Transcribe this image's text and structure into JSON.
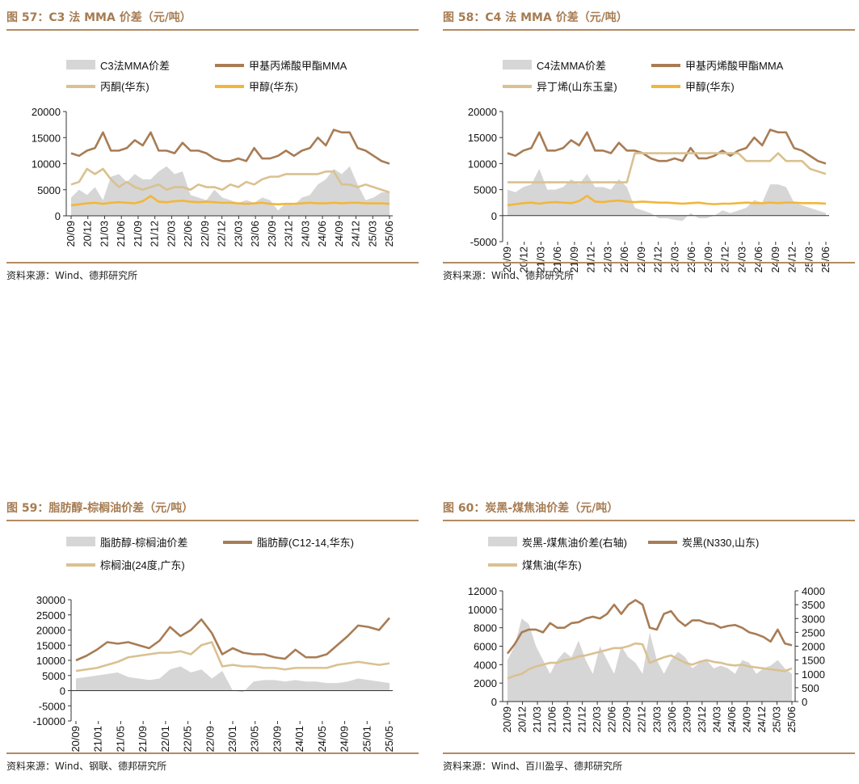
{
  "charts": [
    {
      "fig_no": "图 57：",
      "title": "C3 法 MMA 价差（元/吨）",
      "source": "资料来源：Wind、德邦研究所",
      "colors": {
        "spread": "#d6d6d6",
        "mma": "#a87c55",
        "b": "#d9c191",
        "methanol": "#f2b63b"
      },
      "chart_data": {
        "type": "line",
        "title": "C3 法 MMA 价差（元/吨）",
        "legend": [
          "C3法MMA价差",
          "甲基丙烯酸甲酯MMA",
          "丙酮(华东)",
          "甲醇(华东)"
        ],
        "ylim": [
          0,
          20000
        ],
        "yticks": [
          "20000",
          "15000",
          "10000",
          "5000",
          "0"
        ],
        "xticks": [
          "20/09",
          "20/12",
          "21/03",
          "21/06",
          "21/09",
          "21/12",
          "22/03",
          "22/06",
          "22/09",
          "22/12",
          "23/03",
          "23/06",
          "23/09",
          "23/12",
          "24/03",
          "24/06",
          "24/09",
          "24/12",
          "25/03",
          "25/06"
        ],
        "x": [
          0,
          0.5,
          1,
          1.5,
          2,
          2.5,
          3,
          3.5,
          4,
          4.5,
          5,
          5.5,
          6,
          6.5,
          7,
          7.5,
          8,
          8.5,
          9,
          9.5,
          10,
          10.5,
          11,
          11.5,
          12,
          12.5,
          13,
          13.5,
          14,
          14.5,
          15,
          15.5,
          16,
          16.5,
          17,
          17.5,
          18,
          18.5,
          19,
          19.5,
          20
        ],
        "series": [
          {
            "name": "C3法MMA价差",
            "kind": "area",
            "values": [
              3500,
              5000,
              4000,
              5500,
              3000,
              7500,
              8000,
              6500,
              8000,
              7000,
              7000,
              8500,
              9500,
              8000,
              8500,
              4000,
              3500,
              3000,
              5000,
              3500,
              3000,
              2500,
              3000,
              2500,
              3500,
              3000,
              1000,
              2500,
              2000,
              3500,
              4000,
              6000,
              7000,
              9000,
              8000,
              9500,
              6000,
              3000,
              3500,
              4500,
              4500
            ]
          },
          {
            "name": "甲基丙烯酸甲酯MMA",
            "kind": "line",
            "values": [
              12000,
              11500,
              12500,
              13000,
              16000,
              12500,
              12500,
              13000,
              14500,
              13500,
              16000,
              12500,
              12500,
              12000,
              14000,
              12500,
              12500,
              12000,
              11000,
              10500,
              10500,
              11000,
              10500,
              13000,
              11000,
              11000,
              11500,
              12500,
              11500,
              12500,
              13000,
              15000,
              13500,
              16500,
              16000,
              16000,
              13000,
              12500,
              11500,
              10500,
              10000
            ]
          },
          {
            "name": "丙酮(华东)",
            "kind": "line",
            "values": [
              6000,
              6500,
              9000,
              8000,
              9000,
              7000,
              5500,
              6500,
              5500,
              5000,
              5500,
              6000,
              5000,
              5500,
              5500,
              5000,
              6000,
              5500,
              5500,
              5000,
              6000,
              5500,
              6500,
              6000,
              7000,
              7500,
              7500,
              8000,
              8000,
              8000,
              8000,
              8000,
              8500,
              8500,
              6000,
              6000,
              5500,
              6000,
              5500,
              5000,
              4500
            ]
          },
          {
            "name": "甲醇(华东)",
            "kind": "line",
            "values": [
              2000,
              2200,
              2400,
              2500,
              2300,
              2500,
              2600,
              2500,
              2400,
              2800,
              3800,
              2700,
              2600,
              2800,
              2900,
              2700,
              2600,
              2700,
              2600,
              2500,
              2500,
              2400,
              2300,
              2400,
              2500,
              2300,
              2200,
              2300,
              2300,
              2400,
              2500,
              2400,
              2400,
              2500,
              2400,
              2500,
              2500,
              2400,
              2400,
              2400,
              2300
            ]
          }
        ]
      }
    },
    {
      "fig_no": "图 58：",
      "title": "C4 法 MMA 价差（元/吨）",
      "source": "资料来源：Wind、德邦研究所",
      "colors": {
        "spread": "#d6d6d6",
        "mma": "#a87c55",
        "b": "#d9c191",
        "methanol": "#f2b63b"
      },
      "chart_data": {
        "type": "line",
        "title": "C4 法 MMA 价差（元/吨）",
        "legend": [
          "C4法MMA价差",
          "甲基丙烯酸甲酯MMA",
          "异丁烯(山东玉皇)",
          "甲醇(华东)"
        ],
        "ylim": [
          -5000,
          20000
        ],
        "yticks": [
          "20000",
          "15000",
          "10000",
          "5000",
          "0",
          "-5000"
        ],
        "xticks": [
          "20/09",
          "20/12",
          "21/03",
          "21/06",
          "21/09",
          "21/12",
          "22/03",
          "22/06",
          "22/09",
          "22/12",
          "23/03",
          "23/06",
          "23/09",
          "23/12",
          "24/03",
          "24/06",
          "24/09",
          "24/12",
          "25/03",
          "25/06"
        ],
        "x": [
          0,
          0.5,
          1,
          1.5,
          2,
          2.5,
          3,
          3.5,
          4,
          4.5,
          5,
          5.5,
          6,
          6.5,
          7,
          7.5,
          8,
          8.5,
          9,
          9.5,
          10,
          10.5,
          11,
          11.5,
          12,
          12.5,
          13,
          13.5,
          14,
          14.5,
          15,
          15.5,
          16,
          16.5,
          17,
          17.5,
          18,
          18.5,
          19,
          19.5,
          20
        ],
        "series": [
          {
            "name": "C4法MMA价差",
            "kind": "area",
            "values": [
              5000,
              4500,
              5500,
              6000,
              9000,
              5000,
              5000,
              5500,
              7000,
              6000,
              8000,
              5500,
              5500,
              5000,
              7000,
              5500,
              1500,
              1000,
              500,
              -500,
              -500,
              -800,
              -1000,
              500,
              -500,
              -500,
              0,
              1000,
              500,
              1000,
              1500,
              3000,
              2500,
              6000,
              6000,
              5500,
              2500,
              2000,
              1500,
              1000,
              500
            ]
          },
          {
            "name": "甲基丙烯酸甲酯MMA",
            "kind": "line",
            "values": [
              12000,
              11500,
              12500,
              13000,
              16000,
              12500,
              12500,
              13000,
              14500,
              13500,
              16000,
              12500,
              12500,
              12000,
              14000,
              12500,
              12500,
              12000,
              11000,
              10500,
              10500,
              11000,
              10500,
              13000,
              11000,
              11000,
              11500,
              12500,
              11500,
              12500,
              13000,
              15000,
              13500,
              16500,
              16000,
              16000,
              13000,
              12500,
              11500,
              10500,
              10000
            ]
          },
          {
            "name": "异丁烯(山东玉皇)",
            "kind": "line",
            "values": [
              6400,
              6400,
              6400,
              6400,
              6400,
              6400,
              6400,
              6400,
              6400,
              6400,
              6400,
              6400,
              6400,
              6400,
              6400,
              6400,
              12000,
              12000,
              12000,
              12000,
              12000,
              12000,
              12000,
              12000,
              12000,
              12000,
              12000,
              12000,
              12000,
              12000,
              10500,
              10500,
              10500,
              10500,
              12000,
              10500,
              10500,
              10500,
              9000,
              8500,
              8000
            ]
          },
          {
            "name": "甲醇(华东)",
            "kind": "line",
            "values": [
              2000,
              2200,
              2400,
              2500,
              2300,
              2500,
              2600,
              2500,
              2400,
              2800,
              3800,
              2700,
              2600,
              2800,
              2900,
              2700,
              2600,
              2700,
              2600,
              2500,
              2500,
              2400,
              2300,
              2400,
              2500,
              2300,
              2200,
              2300,
              2300,
              2400,
              2500,
              2400,
              2400,
              2500,
              2400,
              2500,
              2500,
              2400,
              2400,
              2400,
              2300
            ]
          }
        ]
      }
    },
    {
      "fig_no": "图 59：",
      "title": "脂肪醇-棕榈油价差（元/吨）",
      "source": "资料来源：Wind、钢联、德邦研究所",
      "colors": {
        "spread": "#d6d6d6",
        "mma": "#a87c55",
        "b": "#d9c191",
        "methanol": "#f2b63b"
      },
      "chart_data": {
        "type": "line",
        "title": "脂肪醇-棕榈油价差（元/吨）",
        "legend": [
          "脂肪醇-棕榈油价差",
          "脂肪醇(C12-14,华东)",
          "棕榈油(24度,广东)"
        ],
        "ylim": [
          -10000,
          30000
        ],
        "yticks": [
          "30000",
          "25000",
          "20000",
          "15000",
          "10000",
          "5000",
          "0",
          "-5000",
          "-10000"
        ],
        "xticks": [
          "20/09",
          "21/01",
          "21/05",
          "21/09",
          "22/01",
          "22/05",
          "22/09",
          "23/01",
          "23/05",
          "23/09",
          "24/01",
          "24/05",
          "24/09",
          "25/01",
          "25/05"
        ],
        "x": [
          0,
          0.5,
          1,
          1.5,
          2,
          2.5,
          3,
          3.5,
          4,
          4.5,
          5,
          5.5,
          6,
          6.5,
          7,
          7.5,
          8,
          8.5,
          9,
          9.5,
          10,
          10.5,
          11,
          11.5,
          12,
          12.5,
          13,
          13.5,
          14,
          14.5,
          15
        ],
        "series": [
          {
            "name": "脂肪醇-棕榈油价差",
            "kind": "area",
            "values": [
              4000,
              4500,
              5000,
              5500,
              6000,
              4500,
              4000,
              3500,
              4000,
              7000,
              8000,
              6000,
              7000,
              4000,
              6500,
              0,
              -500,
              3000,
              3500,
              3500,
              3000,
              3500,
              3000,
              3000,
              2500,
              2500,
              3000,
              4000,
              3500,
              3000,
              2500
            ]
          },
          {
            "name": "脂肪醇(C12-14,华东)",
            "kind": "line",
            "values": [
              10000,
              11500,
              13500,
              16000,
              15500,
              16000,
              15000,
              14000,
              16500,
              21000,
              18000,
              20000,
              23500,
              19000,
              12000,
              14000,
              12500,
              12000,
              12000,
              11000,
              10500,
              13500,
              11000,
              11000,
              12000,
              15000,
              18000,
              21500,
              21000,
              20000,
              24000
            ]
          },
          {
            "name": "棕榈油(24度,广东)",
            "kind": "line",
            "values": [
              6500,
              7000,
              7500,
              8500,
              9500,
              11000,
              11500,
              12000,
              12500,
              12500,
              13000,
              12000,
              15000,
              16000,
              8000,
              8500,
              8000,
              8000,
              7500,
              7500,
              7000,
              7500,
              7500,
              7500,
              7500,
              8500,
              9000,
              9500,
              9000,
              8500,
              9000
            ]
          }
        ]
      }
    },
    {
      "fig_no": "图 60：",
      "title": "炭黑-煤焦油价差（元/吨）",
      "source": "资料来源：Wind、百川盈孚、德邦研究所",
      "colors": {
        "spread": "#d6d6d6",
        "mma": "#a87c55",
        "b": "#d9c191",
        "methanol": "#f2b63b"
      },
      "chart_data": {
        "type": "line",
        "title": "炭黑-煤焦油价差（元/吨）",
        "legend": [
          "炭黑-煤焦油价差(右轴)",
          "炭黑(N330,山东)",
          "煤焦油(华东)"
        ],
        "ylim": [
          0,
          12000
        ],
        "y2lim": [
          0,
          4000
        ],
        "yticks": [
          "12000",
          "10000",
          "8000",
          "6000",
          "4000",
          "2000",
          "0"
        ],
        "y2ticks": [
          "4000",
          "3500",
          "3000",
          "2500",
          "2000",
          "1500",
          "1000",
          "500",
          "0"
        ],
        "xticks": [
          "20/09",
          "20/12",
          "21/03",
          "21/06",
          "21/09",
          "21/12",
          "22/03",
          "22/06",
          "22/09",
          "22/12",
          "23/03",
          "23/06",
          "23/09",
          "23/12",
          "24/03",
          "24/06",
          "24/09",
          "24/12",
          "25/03",
          "25/06"
        ],
        "x": [
          0,
          0.5,
          1,
          1.5,
          2,
          2.5,
          3,
          3.5,
          4,
          4.5,
          5,
          5.5,
          6,
          6.5,
          7,
          7.5,
          8,
          8.5,
          9,
          9.5,
          10,
          10.5,
          11,
          11.5,
          12,
          12.5,
          13,
          13.5,
          14,
          14.5,
          15,
          15.5,
          16,
          16.5,
          17,
          17.5,
          18,
          18.5,
          19,
          19.5,
          20
        ],
        "series": [
          {
            "name": "炭黑-煤焦油价差(右轴)",
            "kind": "area",
            "axis": "right",
            "values": [
              1500,
              2000,
              3000,
              2800,
              2000,
              1500,
              1000,
              1500,
              1800,
              1600,
              2200,
              1500,
              1000,
              2000,
              1500,
              1000,
              2000,
              1600,
              1400,
              1000,
              2500,
              1500,
              1000,
              1500,
              1800,
              1600,
              1200,
              1400,
              1500,
              1200,
              1300,
              1200,
              1000,
              1500,
              1400,
              1000,
              1200,
              1300,
              1500,
              1200,
              1000
            ]
          },
          {
            "name": "炭黑(N330,山东)",
            "kind": "line",
            "values": [
              5200,
              6200,
              7500,
              7800,
              7800,
              7500,
              8500,
              8000,
              8000,
              8500,
              8600,
              9000,
              9200,
              9000,
              9500,
              10500,
              9500,
              10500,
              11000,
              10500,
              8000,
              7800,
              9500,
              9800,
              8800,
              8200,
              8800,
              8800,
              8500,
              8400,
              8000,
              8200,
              8300,
              8000,
              7500,
              7300,
              7000,
              6500,
              7800,
              6300,
              6100
            ]
          },
          {
            "name": "煤焦油(华东)",
            "kind": "line",
            "values": [
              2500,
              2800,
              3000,
              3500,
              3800,
              4000,
              4200,
              4200,
              4500,
              4600,
              4900,
              5000,
              5200,
              5400,
              5600,
              5800,
              5800,
              6000,
              6300,
              6200,
              4200,
              4500,
              4800,
              5000,
              4600,
              4200,
              4000,
              4300,
              4500,
              4300,
              4200,
              4000,
              3900,
              4000,
              3800,
              3700,
              3600,
              3500,
              3400,
              3300,
              3600
            ]
          }
        ]
      }
    }
  ]
}
